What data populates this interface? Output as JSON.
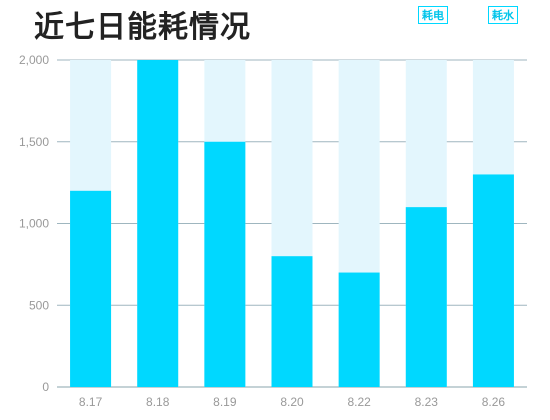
{
  "title": "近七日能耗情况",
  "legend": [
    {
      "label": "耗电",
      "color": "#00d8ff"
    },
    {
      "label": "耗水",
      "color": "#e3f6fd"
    }
  ],
  "chart_data": {
    "type": "bar",
    "title": "近七日能耗情况",
    "categories": [
      "8.17",
      "8.18",
      "8.19",
      "8.20",
      "8.22",
      "8.23",
      "8.26"
    ],
    "series": [
      {
        "name": "耗电",
        "values": [
          1200,
          2000,
          1500,
          800,
          700,
          1100,
          1300
        ],
        "color": "#00d8ff"
      }
    ],
    "background_max": 2000,
    "background_color": "#e3f6fd",
    "ylim": [
      0,
      2000
    ],
    "yticks": [
      0,
      500,
      1000,
      1500,
      2000
    ],
    "ytick_labels": [
      "0",
      "500",
      "1,000",
      "1,500",
      "2,000"
    ],
    "grid": true
  }
}
